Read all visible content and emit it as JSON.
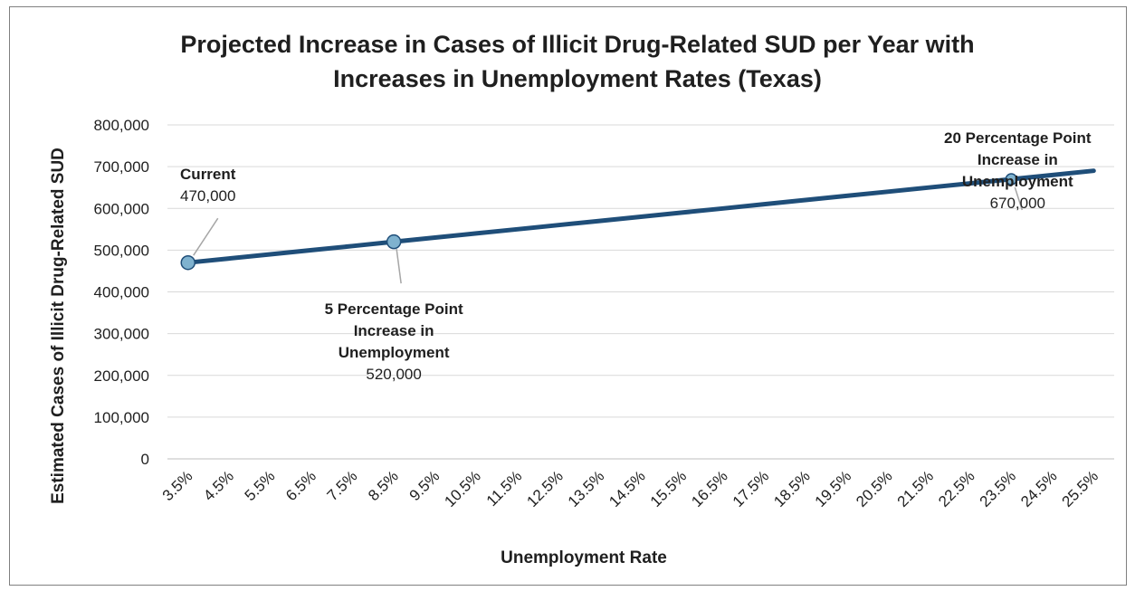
{
  "chart_data": {
    "type": "line",
    "title": "Projected Increase in Cases of Illicit Drug-Related SUD per Year with Increases in Unemployment Rates (Texas)",
    "title_lines": [
      "Projected Increase in Cases of Illicit Drug-Related SUD per Year with",
      "Increases in Unemployment Rates (Texas)"
    ],
    "xlabel": "Unemployment Rate",
    "ylabel": "Estimated Cases of Illicit Drug-Related SUD",
    "categories": [
      "3.5%",
      "4.5%",
      "5.5%",
      "6.5%",
      "7.5%",
      "8.5%",
      "9.5%",
      "10.5%",
      "11.5%",
      "12.5%",
      "13.5%",
      "14.5%",
      "15.5%",
      "16.5%",
      "17.5%",
      "18.5%",
      "19.5%",
      "20.5%",
      "21.5%",
      "22.5%",
      "23.5%",
      "24.5%",
      "25.5%"
    ],
    "series": [
      {
        "values": [
          470000,
          480000,
          490000,
          500000,
          510000,
          520000,
          530000,
          540000,
          550000,
          560000,
          570000,
          580000,
          590000,
          600000,
          610000,
          620000,
          630000,
          640000,
          650000,
          660000,
          670000,
          680000,
          690000
        ]
      }
    ],
    "ylim": [
      0,
      800000
    ],
    "yticks": [
      "0",
      "100,000",
      "200,000",
      "300,000",
      "400,000",
      "500,000",
      "600,000",
      "700,000",
      "800,000"
    ],
    "grid": true,
    "legend": "none",
    "line_color": "#1f4e79",
    "marker_color": "#7fb2cf",
    "annotations": [
      {
        "index": 0,
        "label_lines": [
          "Current"
        ],
        "value_text": "470,000"
      },
      {
        "index": 5,
        "label_lines": [
          "5 Percentage Point",
          "Increase in",
          "Unemployment"
        ],
        "value_text": "520,000"
      },
      {
        "index": 20,
        "label_lines": [
          "20 Percentage Point",
          "Increase in",
          "Unemployment"
        ],
        "value_text": "670,000"
      }
    ]
  }
}
